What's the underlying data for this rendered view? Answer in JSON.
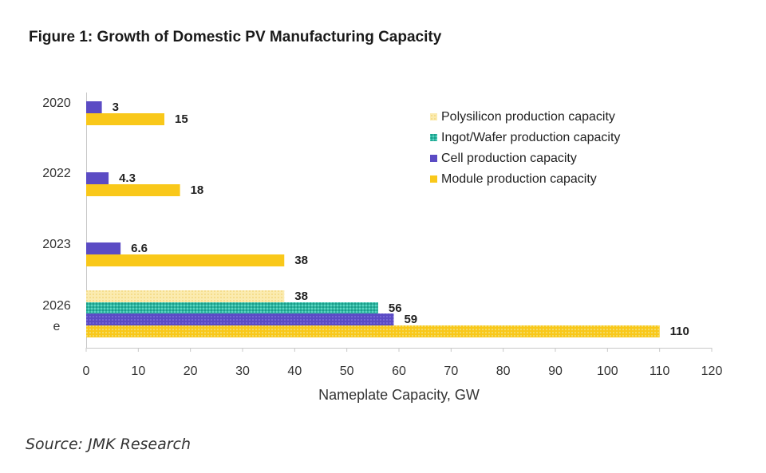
{
  "title": "Figure 1: Growth of Domestic PV Manufacturing Capacity",
  "source": "Source: JMK Research",
  "chart_data": {
    "type": "bar",
    "orientation": "horizontal",
    "categories": [
      [
        "2020"
      ],
      [
        "2022"
      ],
      [
        "2023"
      ],
      [
        "2026",
        "e"
      ]
    ],
    "series": [
      {
        "name": "Polysilicon production capacity",
        "color": "#FBE9A6",
        "pattern": "dots",
        "values": [
          null,
          null,
          null,
          38
        ]
      },
      {
        "name": "Ingot/Wafer production capacity",
        "color": "#2EB8A4",
        "pattern": "dots",
        "values": [
          null,
          null,
          null,
          56
        ]
      },
      {
        "name": "Cell production capacity",
        "color": "#5B4BC4",
        "pattern": "solid",
        "values": [
          3,
          4.3,
          6.6,
          59
        ]
      },
      {
        "name": "Module production capacity",
        "color": "#F9C81A",
        "pattern": "solid",
        "values": [
          15,
          18,
          38,
          110
        ]
      }
    ],
    "data_labels": [
      [
        "",
        "",
        "",
        "38"
      ],
      [
        "",
        "",
        "",
        "56"
      ],
      [
        "3",
        "4.3",
        "6.6",
        "59"
      ],
      [
        "15",
        "18",
        "38",
        "110"
      ]
    ],
    "xlabel": "Nameplate Capacity, GW",
    "xlim": [
      0,
      120
    ],
    "xticks": [
      0,
      10,
      20,
      30,
      40,
      50,
      60,
      70,
      80,
      90,
      100,
      110,
      120
    ],
    "legend_position": "top-right",
    "grid": false
  }
}
